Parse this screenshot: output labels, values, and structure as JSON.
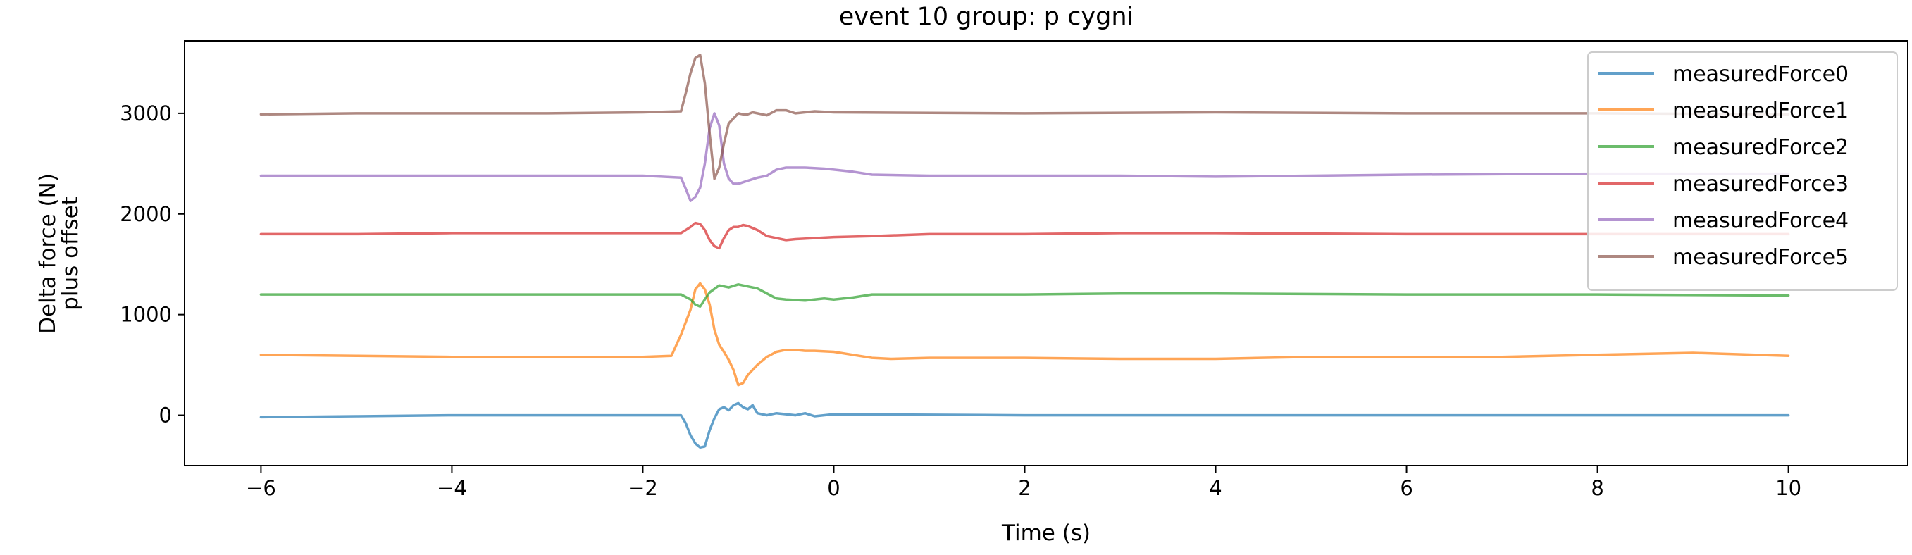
{
  "chart_data": {
    "type": "line",
    "title": "event 10 group: p cygni",
    "xlabel": "Time (s)",
    "ylabel": [
      "Delta force (N)",
      "plus offset"
    ],
    "xlim": [
      -6.8,
      11.25
    ],
    "ylim": [
      -500,
      3720
    ],
    "xticks": [
      -6,
      -4,
      -2,
      0,
      2,
      4,
      6,
      8,
      10
    ],
    "yticks": [
      0,
      1000,
      2000,
      3000
    ],
    "grid": false,
    "legend_position": "top-right",
    "colors": [
      "#1f77b4",
      "#ff7f0e",
      "#2ca02c",
      "#d62728",
      "#9467bd",
      "#8c564b"
    ],
    "series": [
      {
        "name": "measuredForce0",
        "offset": 0,
        "x": [
          -6,
          -5,
          -4,
          -3,
          -2,
          -1.6,
          -1.55,
          -1.5,
          -1.45,
          -1.4,
          -1.35,
          -1.3,
          -1.25,
          -1.2,
          -1.15,
          -1.1,
          -1.05,
          -1.0,
          -0.95,
          -0.9,
          -0.85,
          -0.8,
          -0.7,
          -0.6,
          -0.5,
          -0.4,
          -0.3,
          -0.2,
          0,
          2,
          4,
          6,
          8,
          10
        ],
        "y": [
          -20,
          -10,
          0,
          0,
          0,
          0,
          -80,
          -200,
          -280,
          -320,
          -310,
          -150,
          -30,
          60,
          80,
          50,
          100,
          120,
          80,
          60,
          100,
          20,
          0,
          20,
          10,
          0,
          20,
          -10,
          10,
          0,
          0,
          0,
          0,
          0
        ]
      },
      {
        "name": "measuredForce1",
        "offset": 600,
        "x": [
          -6,
          -5,
          -4,
          -3,
          -2,
          -1.7,
          -1.6,
          -1.5,
          -1.45,
          -1.4,
          -1.35,
          -1.3,
          -1.25,
          -1.2,
          -1.15,
          -1.1,
          -1.05,
          -1.0,
          -0.95,
          -0.9,
          -0.8,
          -0.7,
          -0.6,
          -0.5,
          -0.4,
          -0.3,
          -0.2,
          0,
          0.2,
          0.4,
          0.6,
          1,
          2,
          3,
          4,
          5,
          6,
          7,
          8,
          9,
          10
        ],
        "y": [
          0,
          -10,
          -20,
          -20,
          -20,
          -10,
          200,
          450,
          650,
          710,
          650,
          500,
          250,
          100,
          30,
          -50,
          -150,
          -300,
          -280,
          -200,
          -100,
          -20,
          30,
          50,
          50,
          40,
          40,
          30,
          0,
          -30,
          -40,
          -30,
          -30,
          -40,
          -40,
          -20,
          -20,
          -20,
          0,
          20,
          -10
        ]
      },
      {
        "name": "measuredForce2",
        "offset": 1200,
        "x": [
          -6,
          -5,
          -4,
          -3,
          -2,
          -1.6,
          -1.5,
          -1.45,
          -1.4,
          -1.35,
          -1.3,
          -1.2,
          -1.1,
          -1.0,
          -0.9,
          -0.8,
          -0.7,
          -0.6,
          -0.5,
          -0.3,
          -0.1,
          0,
          0.2,
          0.4,
          1,
          2,
          3,
          4,
          6,
          8,
          10
        ],
        "y": [
          0,
          0,
          0,
          0,
          0,
          0,
          -50,
          -100,
          -120,
          -50,
          20,
          90,
          70,
          100,
          80,
          60,
          10,
          -40,
          -50,
          -60,
          -40,
          -50,
          -30,
          0,
          0,
          0,
          10,
          10,
          0,
          0,
          -10
        ]
      },
      {
        "name": "measuredForce3",
        "offset": 1800,
        "x": [
          -6,
          -5,
          -4,
          -3,
          -2,
          -1.6,
          -1.5,
          -1.45,
          -1.4,
          -1.35,
          -1.3,
          -1.25,
          -1.2,
          -1.15,
          -1.1,
          -1.05,
          -1.0,
          -0.95,
          -0.9,
          -0.8,
          -0.7,
          -0.6,
          -0.5,
          -0.4,
          -0.2,
          0,
          0.4,
          1,
          2,
          3,
          4,
          6,
          8,
          10
        ],
        "y": [
          0,
          0,
          10,
          10,
          10,
          10,
          70,
          110,
          100,
          40,
          -60,
          -120,
          -140,
          -40,
          40,
          70,
          70,
          90,
          80,
          40,
          -20,
          -40,
          -60,
          -50,
          -40,
          -30,
          -20,
          0,
          0,
          10,
          10,
          0,
          0,
          0
        ]
      },
      {
        "name": "measuredForce4",
        "offset": 2400,
        "x": [
          -6,
          -5,
          -4,
          -3,
          -2,
          -1.6,
          -1.55,
          -1.5,
          -1.45,
          -1.4,
          -1.35,
          -1.3,
          -1.25,
          -1.2,
          -1.15,
          -1.1,
          -1.05,
          -1.0,
          -0.9,
          -0.8,
          -0.7,
          -0.6,
          -0.5,
          -0.3,
          -0.1,
          0,
          0.2,
          0.4,
          1,
          2,
          3,
          4,
          5,
          6,
          8,
          10
        ],
        "y": [
          -20,
          -20,
          -20,
          -20,
          -20,
          -40,
          -150,
          -270,
          -230,
          -140,
          100,
          450,
          600,
          480,
          100,
          -50,
          -100,
          -100,
          -70,
          -40,
          -20,
          40,
          60,
          60,
          50,
          40,
          20,
          -10,
          -20,
          -20,
          -20,
          -30,
          -20,
          -10,
          0,
          0
        ]
      },
      {
        "name": "measuredForce5",
        "offset": 3000,
        "x": [
          -6,
          -5,
          -4,
          -3,
          -2,
          -1.6,
          -1.55,
          -1.5,
          -1.45,
          -1.4,
          -1.35,
          -1.3,
          -1.25,
          -1.2,
          -1.15,
          -1.1,
          -1.05,
          -1.0,
          -0.95,
          -0.9,
          -0.85,
          -0.8,
          -0.7,
          -0.6,
          -0.5,
          -0.4,
          -0.2,
          0,
          2,
          4,
          6,
          8,
          10
        ],
        "y": [
          -10,
          0,
          0,
          0,
          10,
          20,
          200,
          400,
          550,
          580,
          300,
          -200,
          -650,
          -540,
          -300,
          -100,
          -50,
          0,
          -10,
          -10,
          10,
          0,
          -20,
          30,
          30,
          0,
          20,
          10,
          0,
          10,
          0,
          0,
          -10
        ]
      }
    ]
  }
}
